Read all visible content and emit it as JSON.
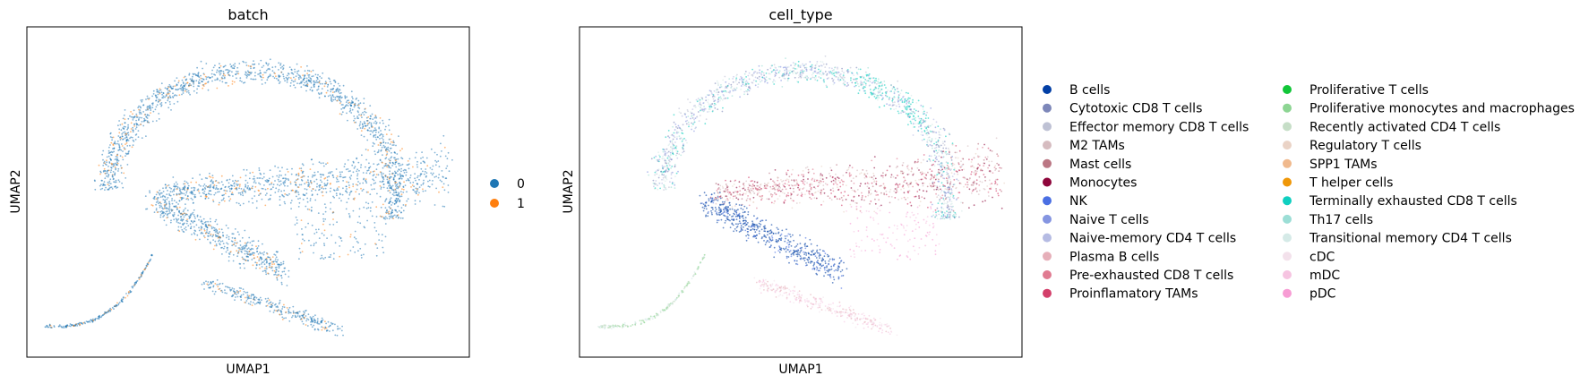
{
  "chart_data": [
    {
      "type": "scatter",
      "title": "batch",
      "xlabel": "UMAP1",
      "ylabel": "UMAP2",
      "xticks": [],
      "yticks": [],
      "grid": false,
      "legend": "right-outside",
      "series": [
        {
          "name": "0",
          "color": "#1f77b4"
        },
        {
          "name": "1",
          "color": "#ff7f0e"
        }
      ]
    },
    {
      "type": "scatter",
      "title": "cell_type",
      "xlabel": "UMAP1",
      "ylabel": "UMAP2",
      "xticks": [],
      "yticks": [],
      "grid": false,
      "legend": "right-outside",
      "series": [
        {
          "name": "B cells",
          "color": "#023fa5"
        },
        {
          "name": "Cytotoxic CD8 T cells",
          "color": "#7d87b9"
        },
        {
          "name": "Effector memory CD8 T cells",
          "color": "#bec1d4"
        },
        {
          "name": "M2 TAMs",
          "color": "#d6bcc0"
        },
        {
          "name": "Mast cells",
          "color": "#bb7784"
        },
        {
          "name": "Monocytes",
          "color": "#8e063b"
        },
        {
          "name": "NK",
          "color": "#4a6fe3"
        },
        {
          "name": "Naive T cells",
          "color": "#8595e1"
        },
        {
          "name": "Naive-memory CD4 T cells",
          "color": "#b5bbe3"
        },
        {
          "name": "Plasma B cells",
          "color": "#e6afb9"
        },
        {
          "name": "Pre-exhausted CD8 T cells",
          "color": "#e07b91"
        },
        {
          "name": "Proinflamatory TAMs",
          "color": "#d33f6a"
        },
        {
          "name": "Proliferative T cells",
          "color": "#11c638"
        },
        {
          "name": "Proliferative monocytes and macrophages",
          "color": "#8dd593"
        },
        {
          "name": "Recently activated CD4 T cells",
          "color": "#c6dec7"
        },
        {
          "name": "Regulatory T cells",
          "color": "#ead3c6"
        },
        {
          "name": "SPP1 TAMs",
          "color": "#f0b98d"
        },
        {
          "name": "T helper cells",
          "color": "#ef9708"
        },
        {
          "name": "Terminally exhausted CD8 T cells",
          "color": "#0fcfc0"
        },
        {
          "name": "Th17 cells",
          "color": "#9cded6"
        },
        {
          "name": "Transitional memory CD4 T cells",
          "color": "#d5eae7"
        },
        {
          "name": "cDC",
          "color": "#f3e1eb"
        },
        {
          "name": "mDC",
          "color": "#f6c4e1"
        },
        {
          "name": "pDC",
          "color": "#f79cd4"
        }
      ]
    }
  ]
}
